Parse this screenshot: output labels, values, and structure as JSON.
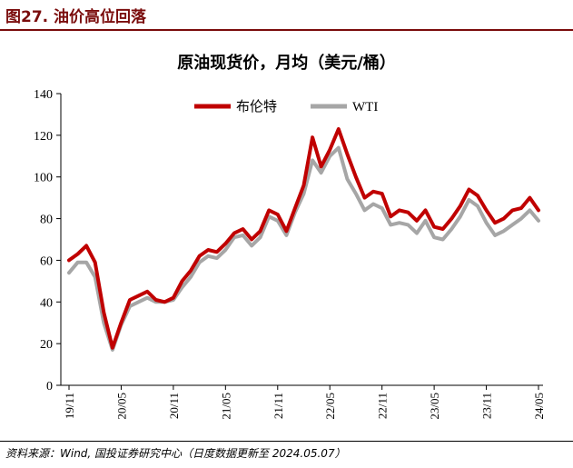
{
  "figure": {
    "number_title": "图27. 油价高位回落",
    "source": "资料来源：Wind, 国投证券研究中心（日度数据更新至 2024.05.07）"
  },
  "chart_data": {
    "type": "line",
    "title": "原油现货价，月均（美元/桶）",
    "xlabel": "",
    "ylabel": "",
    "ylim": [
      0,
      140
    ],
    "yticks": [
      0,
      20,
      40,
      60,
      80,
      100,
      120,
      140
    ],
    "x_tick_labels": [
      "19/11",
      "20/05",
      "20/11",
      "21/05",
      "21/11",
      "22/05",
      "22/11",
      "23/05",
      "23/11",
      "24/05"
    ],
    "x": [
      "2019-11",
      "2019-12",
      "2020-01",
      "2020-02",
      "2020-03",
      "2020-04",
      "2020-05",
      "2020-06",
      "2020-07",
      "2020-08",
      "2020-09",
      "2020-10",
      "2020-11",
      "2020-12",
      "2021-01",
      "2021-02",
      "2021-03",
      "2021-04",
      "2021-05",
      "2021-06",
      "2021-07",
      "2021-08",
      "2021-09",
      "2021-10",
      "2021-11",
      "2021-12",
      "2022-01",
      "2022-02",
      "2022-03",
      "2022-04",
      "2022-05",
      "2022-06",
      "2022-07",
      "2022-08",
      "2022-09",
      "2022-10",
      "2022-11",
      "2022-12",
      "2023-01",
      "2023-02",
      "2023-03",
      "2023-04",
      "2023-05",
      "2023-06",
      "2023-07",
      "2023-08",
      "2023-09",
      "2023-10",
      "2023-11",
      "2023-12",
      "2024-01",
      "2024-02",
      "2024-03",
      "2024-04",
      "2024-05"
    ],
    "grid": false,
    "legend_position": "top",
    "series": [
      {
        "name": "布伦特",
        "color": "#c00000",
        "values": [
          60,
          63,
          67,
          59,
          35,
          18,
          30,
          41,
          43,
          45,
          41,
          40,
          42,
          50,
          55,
          62,
          65,
          64,
          68,
          73,
          75,
          70,
          74,
          84,
          82,
          74,
          85,
          96,
          119,
          105,
          113,
          123,
          111,
          100,
          90,
          93,
          92,
          81,
          84,
          83,
          79,
          84,
          76,
          75,
          80,
          86,
          94,
          91,
          84,
          78,
          80,
          84,
          85,
          90,
          84
        ]
      },
      {
        "name": "WTI",
        "color": "#a6a6a6",
        "values": [
          54,
          59,
          59,
          52,
          30,
          17,
          29,
          38,
          40,
          42,
          40,
          40,
          41,
          47,
          52,
          59,
          62,
          61,
          65,
          71,
          72,
          67,
          71,
          81,
          79,
          72,
          83,
          92,
          108,
          102,
          110,
          114,
          99,
          92,
          84,
          87,
          85,
          77,
          78,
          77,
          73,
          79,
          71,
          70,
          75,
          81,
          89,
          86,
          78,
          72,
          74,
          77,
          80,
          84,
          79
        ]
      }
    ]
  }
}
